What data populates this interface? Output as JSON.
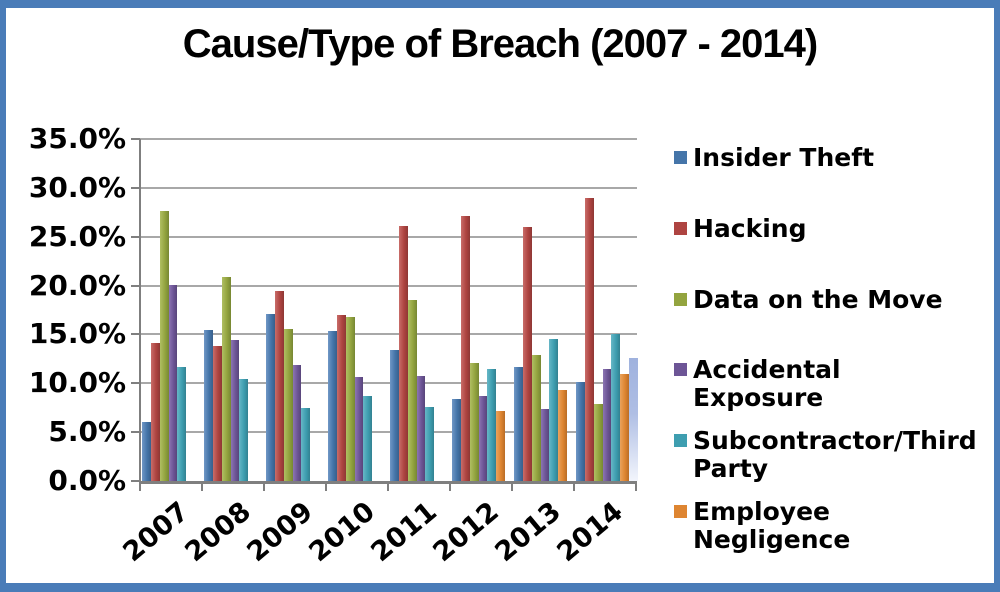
{
  "frame": {
    "border_color": "#4A7CB8",
    "background": "#FFFFFF"
  },
  "chart_data": {
    "type": "bar",
    "title": "Cause/Type of Breach (2007 - 2014)",
    "categories": [
      "2007",
      "2008",
      "2009",
      "2010",
      "2011",
      "2012",
      "2013",
      "2014"
    ],
    "series": [
      {
        "name": "Insider Theft",
        "color": "#4575A9",
        "color_light": "#7097C6",
        "color_dark": "#385F8B",
        "values": [
          6.0,
          15.5,
          17.1,
          15.3,
          13.4,
          8.4,
          11.7,
          10.1
        ]
      },
      {
        "name": "Hacking",
        "color": "#AE4441",
        "color_light": "#C96D69",
        "color_dark": "#8E3734",
        "values": [
          14.1,
          13.8,
          19.4,
          17.0,
          26.1,
          27.1,
          26.0,
          29.0
        ]
      },
      {
        "name": "Data on the Move",
        "color": "#93A43F",
        "color_light": "#B0BF63",
        "color_dark": "#778733",
        "values": [
          27.6,
          20.9,
          15.6,
          16.8,
          18.5,
          12.1,
          12.9,
          7.9
        ]
      },
      {
        "name": "Accidental Exposure",
        "color": "#6D5596",
        "color_light": "#8C75B3",
        "color_dark": "#58457A",
        "values": [
          20.1,
          14.4,
          11.9,
          10.6,
          10.7,
          8.7,
          7.4,
          11.5
        ]
      },
      {
        "name": "Subcontractor/Third Party",
        "color": "#3E9EB0",
        "color_light": "#67B7C6",
        "color_dark": "#328191",
        "values": [
          11.7,
          10.4,
          7.5,
          8.7,
          7.6,
          11.5,
          14.5,
          15.0
        ]
      },
      {
        "name": "Employee Negligence",
        "color": "#DE8531",
        "color_light": "#E9A35E",
        "color_dark": "#B96D26",
        "values": [
          null,
          null,
          null,
          null,
          null,
          7.2,
          9.3,
          10.9
        ]
      },
      {
        "name": "",
        "in_legend": false,
        "gradient": "vertical",
        "color": "#AFBEE4",
        "color_light": "#F2F5FC",
        "color_dark": "#9FB2DE",
        "values": [
          null,
          null,
          null,
          null,
          null,
          null,
          null,
          12.6
        ]
      }
    ],
    "y_axis": {
      "min": 0,
      "max": 35,
      "step": 5,
      "tick_labels": [
        "0.0%",
        "5.0%",
        "10.0%",
        "15.0%",
        "20.0%",
        "25.0%",
        "30.0%",
        "35.0%"
      ]
    },
    "grid": true,
    "legend_position": "right"
  }
}
